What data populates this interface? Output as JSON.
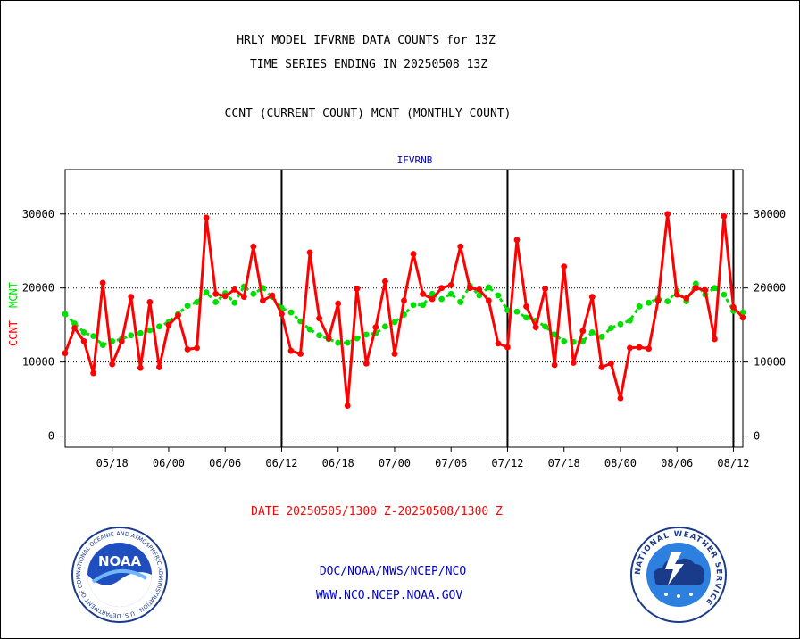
{
  "header": {
    "title_line1": "HRLY MODEL IFVRNB DATA COUNTS for 13Z",
    "title_line2": "TIME SERIES ENDING IN 20250508 13Z",
    "subtitle": "CCNT (CURRENT COUNT) MCNT (MONTHLY COUNT)"
  },
  "footer": {
    "date_range": "DATE 20250505/1300 Z-20250508/1300 Z",
    "org_path": "DOC/NOAA/NWS/NCEP/NCO",
    "website": "WWW.NCO.NCEP.NOAA.GOV"
  },
  "logos": {
    "noaa_text": "NOAA",
    "noaa_ring": "NATIONAL OCEANIC AND ATMOSPHERIC ADMINISTRATION · U.S. DEPARTMENT OF COMMERCE",
    "nws_ring": "NATIONAL WEATHER SERVICE"
  },
  "colors": {
    "ccnt": "#ff0000",
    "mcnt": "#00e000",
    "panel_label": "#0000cc",
    "axis": "#000000"
  },
  "chart_data": {
    "type": "line",
    "panel_label": "IFVRNB",
    "ylabel_left_ccnt": "CCNT",
    "ylabel_left_mcnt": "MCNT",
    "ylim": [
      -1500,
      36000
    ],
    "yticks": [
      0,
      10000,
      20000,
      30000
    ],
    "ytick_labels": [
      "0",
      "10000",
      "20000",
      "30000"
    ],
    "xlim": [
      0,
      72
    ],
    "xticks": [
      5,
      11,
      17,
      23,
      29,
      35,
      41,
      47,
      53,
      59,
      65,
      71
    ],
    "xtick_labels": [
      "05/18",
      "06/00",
      "06/06",
      "06/12",
      "06/18",
      "07/00",
      "07/06",
      "07/12",
      "07/18",
      "08/00",
      "08/06",
      "08/12"
    ],
    "day_boundaries": [
      23,
      47,
      71
    ],
    "grid": true,
    "series": [
      {
        "name": "CCNT",
        "color": "#ff0000",
        "x": [
          0,
          1,
          2,
          3,
          4,
          5,
          6,
          7,
          8,
          9,
          10,
          11,
          12,
          13,
          14,
          15,
          16,
          17,
          18,
          19,
          20,
          21,
          22,
          23,
          24,
          25,
          26,
          27,
          28,
          29,
          30,
          31,
          32,
          33,
          34,
          35,
          36,
          37,
          38,
          39,
          40,
          41,
          42,
          43,
          44,
          45,
          46,
          47,
          48,
          49,
          50,
          51,
          52,
          53,
          54,
          55,
          56,
          57,
          58,
          59,
          60,
          61,
          62,
          63,
          64,
          65,
          66,
          67,
          68,
          69,
          70,
          71,
          72
        ],
        "values": [
          11200,
          14600,
          12800,
          8500,
          20700,
          9700,
          12800,
          18800,
          9200,
          18100,
          9300,
          15000,
          16300,
          11700,
          11900,
          29500,
          19200,
          18900,
          19800,
          18800,
          25600,
          18300,
          19000,
          16500,
          11500,
          11100,
          24800,
          15900,
          13200,
          17900,
          4100,
          19900,
          9800,
          14700,
          20900,
          11100,
          18300,
          24600,
          19200,
          18500,
          20000,
          20400,
          25600,
          20000,
          19800,
          18300,
          12500,
          12000,
          26500,
          17500,
          14700,
          19900,
          9600,
          22900,
          9900,
          14200,
          18800,
          9300,
          9800,
          5100,
          11900,
          12000,
          11800,
          18300,
          30000,
          19100,
          18600,
          20000,
          19700,
          13100,
          29700,
          17400,
          16000
        ]
      },
      {
        "name": "MCNT",
        "color": "#00e000",
        "x": [
          0,
          1,
          2,
          3,
          4,
          5,
          6,
          7,
          8,
          9,
          10,
          11,
          12,
          13,
          14,
          15,
          16,
          17,
          18,
          19,
          20,
          21,
          22,
          23,
          24,
          25,
          26,
          27,
          28,
          29,
          30,
          31,
          32,
          33,
          34,
          35,
          36,
          37,
          38,
          39,
          40,
          41,
          42,
          43,
          44,
          45,
          46,
          47,
          48,
          49,
          50,
          51,
          52,
          53,
          54,
          55,
          56,
          57,
          58,
          59,
          60,
          61,
          62,
          63,
          64,
          65,
          66,
          67,
          68,
          69,
          70,
          71,
          72
        ],
        "values": [
          16500,
          15200,
          14000,
          13500,
          12300,
          12800,
          13100,
          13600,
          13900,
          14300,
          14800,
          15400,
          16500,
          17600,
          18100,
          19400,
          18100,
          19300,
          18000,
          20200,
          19200,
          20000,
          18800,
          17300,
          16700,
          15500,
          14400,
          13600,
          13100,
          12600,
          12600,
          13200,
          13700,
          13900,
          14800,
          15400,
          16400,
          17700,
          17700,
          19200,
          18500,
          19200,
          18100,
          20300,
          19000,
          20100,
          19000,
          17000,
          16800,
          16000,
          15600,
          14800,
          13700,
          12800,
          12700,
          12800,
          14000,
          13400,
          14600,
          15100,
          15600,
          17500,
          18000,
          18600,
          18200,
          19600,
          18200,
          20600,
          19100,
          20000,
          19100,
          16900,
          16700
        ]
      }
    ]
  }
}
